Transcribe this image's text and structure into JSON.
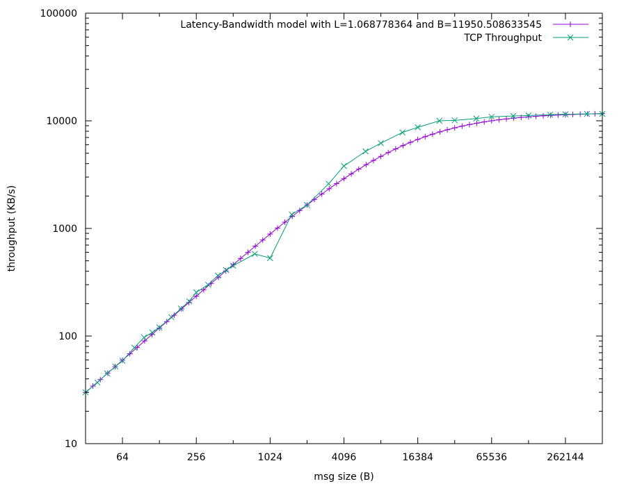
{
  "chart_data": {
    "type": "line",
    "xlabel": "msg size (B)",
    "ylabel": "throughput (KB/s)",
    "xscale": "log2",
    "yscale": "log10",
    "xlim": [
      32,
      524288
    ],
    "ylim": [
      10,
      100000
    ],
    "xticks": [
      64,
      256,
      1024,
      4096,
      16384,
      65536,
      262144
    ],
    "xtick_labels": [
      "64",
      "256",
      "1024",
      "4096",
      "16384",
      "65536",
      "262144"
    ],
    "yticks": [
      10,
      100,
      1000,
      10000,
      100000
    ],
    "ytick_labels": [
      "10",
      "100",
      "1000",
      "10000",
      "100000"
    ],
    "grid": false,
    "legend_position": "top-right",
    "series": [
      {
        "name": "Latency-Bandwidth model with L=1.068778364 and B=11950.508633545",
        "color": "#9400d3",
        "marker": "plus",
        "model": {
          "L": 1.068778364,
          "B": 11950.508633545,
          "x_start": 32,
          "x_end": 524288,
          "points_per_octave": 5
        }
      },
      {
        "name": "TCP Throughput",
        "color": "#009e73",
        "marker": "cross",
        "x": [
          32,
          40,
          48,
          56,
          64,
          80,
          96,
          112,
          128,
          160,
          192,
          224,
          256,
          320,
          384,
          448,
          512,
          768,
          1024,
          1536,
          2048,
          3072,
          4096,
          6144,
          8192,
          12288,
          16384,
          24576,
          32768,
          49152,
          65536,
          98304,
          131072,
          196608,
          262144,
          393216,
          524288
        ],
        "y": [
          30,
          37,
          45,
          52,
          59,
          78,
          97,
          108,
          120,
          150,
          180,
          210,
          255,
          300,
          365,
          410,
          450,
          580,
          530,
          1350,
          1650,
          2600,
          3800,
          5200,
          6200,
          7800,
          8700,
          10000,
          10100,
          10500,
          10900,
          11100,
          11200,
          11400,
          11500,
          11600,
          11600
        ]
      }
    ]
  }
}
